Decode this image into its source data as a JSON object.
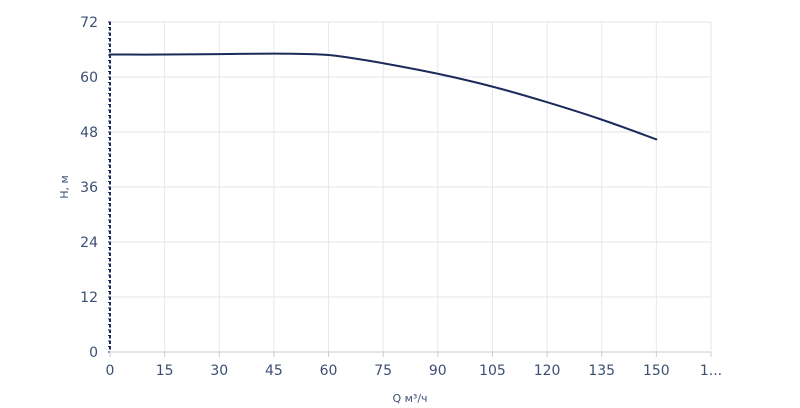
{
  "chart_data": {
    "type": "line",
    "xlabel": "Q м³/ч",
    "ylabel": "H, м",
    "xlim": [
      0,
      165
    ],
    "ylim": [
      0,
      72
    ],
    "x_ticks": [
      "0",
      "15",
      "30",
      "45",
      "60",
      "75",
      "90",
      "105",
      "120",
      "135",
      "150",
      "1..."
    ],
    "y_ticks": [
      "0",
      "12",
      "24",
      "36",
      "48",
      "60",
      "72"
    ],
    "grid": true,
    "series": [
      {
        "color": "#1b2a5a",
        "x": [
          0,
          15,
          30,
          45,
          55,
          60,
          65,
          75,
          90,
          105,
          120,
          135,
          150
        ],
        "y": [
          64.9,
          64.9,
          65.0,
          65.1,
          65.0,
          64.8,
          64.3,
          63.0,
          60.7,
          57.9,
          54.5,
          50.7,
          46.4
        ]
      }
    ]
  },
  "colors": {
    "grid": "#e6e6ee",
    "axis": "#1b2a5a",
    "text": "#3c4f73"
  }
}
